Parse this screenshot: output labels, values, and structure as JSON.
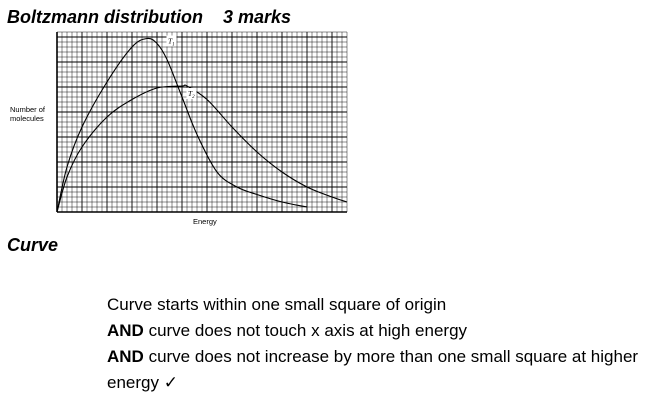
{
  "heading": {
    "title": "Boltzmann distribution",
    "marks": "3 marks"
  },
  "chart_data": {
    "type": "line",
    "xlabel": "Energy",
    "ylabel_lines": [
      "Number of",
      "molecules"
    ],
    "grid": true,
    "xlim": [
      0,
      58
    ],
    "ylim": [
      0,
      36
    ],
    "series": [
      {
        "name": "T1",
        "name_main": "T",
        "name_sub": "1",
        "x": [
          0,
          2,
          5,
          10,
          15,
          18,
          20,
          22,
          25,
          28,
          32,
          36,
          40,
          45,
          50
        ],
        "y": [
          0,
          9,
          17,
          26,
          33,
          34.7,
          33.7,
          30.5,
          23,
          15.5,
          8,
          5,
          3.5,
          2,
          1
        ]
      },
      {
        "name": "T2",
        "name_main": "T",
        "name_sub": "2",
        "x": [
          0,
          2,
          5,
          10,
          15,
          20,
          25,
          26,
          30,
          35,
          40,
          45,
          50,
          55,
          58
        ],
        "y": [
          0,
          7,
          13,
          19,
          22.5,
          24.8,
          25.2,
          25.2,
          22.5,
          17,
          12,
          8,
          5,
          3,
          2
        ]
      }
    ]
  },
  "section": {
    "title": "Curve"
  },
  "criteria": {
    "line1": "Curve starts within one small square of origin",
    "line2_kw": "AND",
    "line2_text": " curve does not touch x axis at high energy",
    "line3_kw": "AND",
    "line3_text": " curve does not increase by more than one small square at higher energy ✓"
  }
}
